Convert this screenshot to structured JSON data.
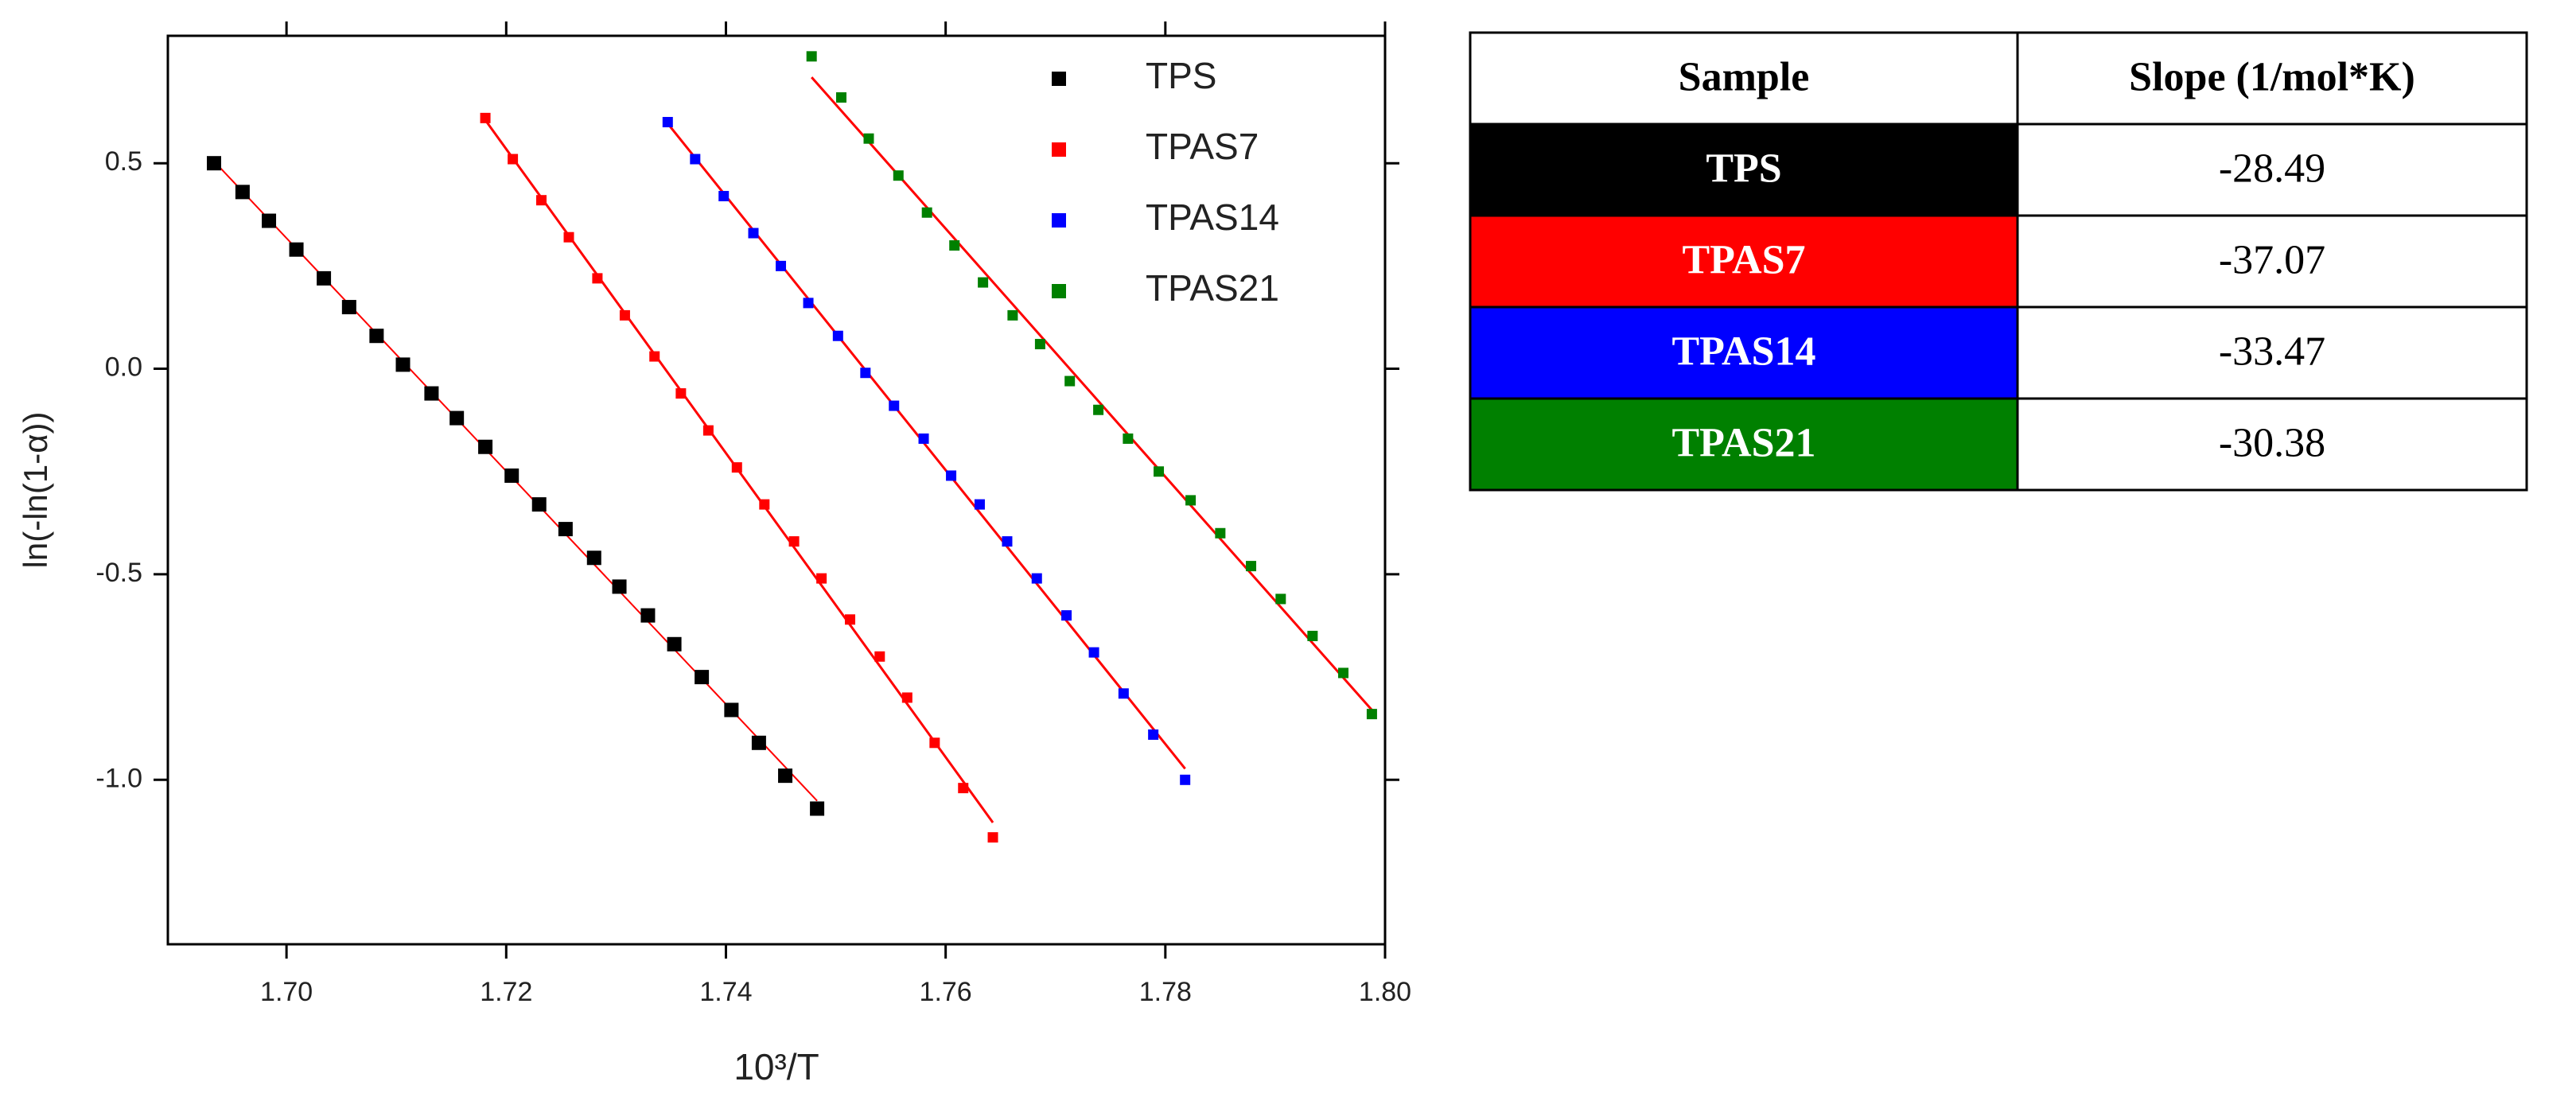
{
  "chart_data": {
    "type": "scatter",
    "x_label": "10³/T",
    "y_label": "ln(-ln(1-α))",
    "xlim": [
      1.6892,
      1.8
    ],
    "ylim": [
      -1.4,
      0.81
    ],
    "xticks": [
      {
        "value": 1.7,
        "label": "1.70"
      },
      {
        "value": 1.72,
        "label": "1.72"
      },
      {
        "value": 1.74,
        "label": "1.74"
      },
      {
        "value": 1.76,
        "label": "1.76"
      },
      {
        "value": 1.78,
        "label": "1.78"
      },
      {
        "value": 1.8,
        "label": "1.80"
      }
    ],
    "yticks": [
      0.5,
      {
        "value": 0,
        "label": "0.0"
      },
      -0.5,
      {
        "value": -1,
        "label": "-1.0"
      }
    ],
    "fit_color": "#ff0000",
    "legend": "upper right",
    "series": [
      {
        "name": "TPS",
        "color": "#000000",
        "x": [
          1.6934,
          1.696,
          1.6984,
          1.7009,
          1.7034,
          1.7057,
          1.7082,
          1.7106,
          1.7132,
          1.7155,
          1.7181,
          1.7205,
          1.723,
          1.7254,
          1.728,
          1.7303,
          1.7329,
          1.7353,
          1.7378,
          1.7405,
          1.743,
          1.7454,
          1.7483
        ],
        "values": [
          0.5,
          0.43,
          0.36,
          0.29,
          0.22,
          0.15,
          0.08,
          0.01,
          -0.06,
          -0.12,
          -0.19,
          -0.26,
          -0.33,
          -0.39,
          -0.46,
          -0.53,
          -0.6,
          -0.67,
          -0.75,
          -0.83,
          -0.91,
          -0.99,
          -1.07
        ]
      },
      {
        "name": "TPAS7",
        "color": "#ff0000",
        "x": [
          1.7181,
          1.7206,
          1.7232,
          1.7257,
          1.7283,
          1.7308,
          1.7335,
          1.7359,
          1.7384,
          1.741,
          1.7435,
          1.7462,
          1.7487,
          1.7513,
          1.754,
          1.7565,
          1.759,
          1.7616,
          1.7643
        ],
        "values": [
          0.61,
          0.51,
          0.41,
          0.32,
          0.22,
          0.13,
          0.03,
          -0.06,
          -0.15,
          -0.24,
          -0.33,
          -0.42,
          -0.51,
          -0.61,
          -0.7,
          -0.8,
          -0.91,
          -1.02,
          -1.14
        ]
      },
      {
        "name": "TPAS14",
        "color": "#0000ff",
        "x": [
          1.7347,
          1.7372,
          1.7398,
          1.7425,
          1.745,
          1.7475,
          1.7502,
          1.7527,
          1.7553,
          1.758,
          1.7605,
          1.7631,
          1.7656,
          1.7683,
          1.771,
          1.7735,
          1.7762,
          1.7789,
          1.7818
        ],
        "values": [
          0.6,
          0.51,
          0.42,
          0.33,
          0.25,
          0.16,
          0.08,
          -0.01,
          -0.09,
          -0.17,
          -0.26,
          -0.33,
          -0.42,
          -0.51,
          -0.6,
          -0.69,
          -0.79,
          -0.89,
          -1.0
        ]
      },
      {
        "name": "TPAS21",
        "color": "#008000",
        "x": [
          1.7478,
          1.7505,
          1.753,
          1.7557,
          1.7583,
          1.7608,
          1.7634,
          1.7661,
          1.7686,
          1.7713,
          1.7739,
          1.7766,
          1.7794,
          1.7823,
          1.785,
          1.7878,
          1.7905,
          1.7934,
          1.7962,
          1.7988
        ],
        "values": [
          0.76,
          0.66,
          0.56,
          0.47,
          0.38,
          0.3,
          0.21,
          0.13,
          0.06,
          -0.03,
          -0.1,
          -0.17,
          -0.25,
          -0.32,
          -0.4,
          -0.48,
          -0.56,
          -0.65,
          -0.74,
          -0.84
        ]
      }
    ]
  },
  "table": {
    "columns": [
      "Sample",
      "Slope (1/mol*K)"
    ],
    "rows": [
      [
        "TPS",
        "-28.49"
      ],
      [
        "TPAS7",
        "-37.07"
      ],
      [
        "TPAS14",
        "-33.47"
      ],
      [
        "TPAS21",
        "-30.38"
      ]
    ],
    "row_colors": [
      "#000000",
      "#ff0000",
      "#0000ff",
      "#008000"
    ]
  }
}
